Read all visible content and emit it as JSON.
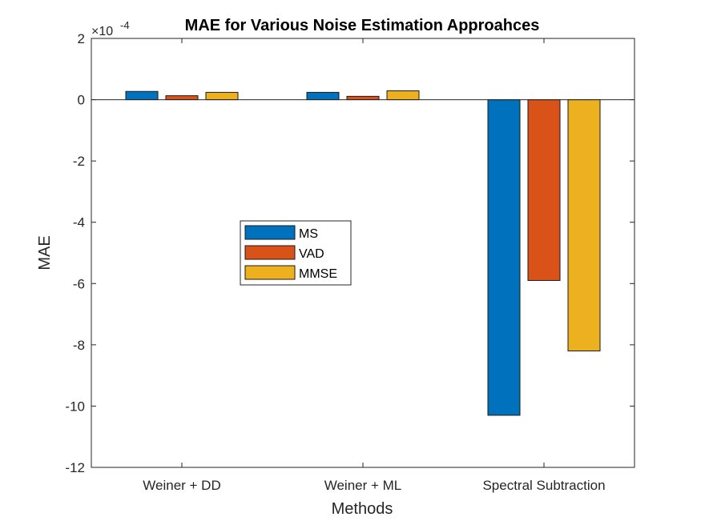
{
  "chart_data": {
    "type": "bar",
    "title": "MAE for Various Noise Estimation Approahces",
    "xlabel": "Methods",
    "ylabel": "MAE",
    "scale_label": "×10",
    "scale_exponent": "-4",
    "categories": [
      "Weiner + DD",
      "Weiner + ML",
      "Spectral Subtraction"
    ],
    "series": [
      {
        "name": "MS",
        "color": "#0072BD",
        "values": [
          0.27,
          0.24,
          -10.3
        ]
      },
      {
        "name": "VAD",
        "color": "#D95319",
        "values": [
          0.13,
          0.11,
          -5.9
        ]
      },
      {
        "name": "MMSE",
        "color": "#EDB120",
        "values": [
          0.24,
          0.29,
          -8.2
        ]
      }
    ],
    "ylim": [
      -12,
      2
    ],
    "yticks": [
      -12,
      -10,
      -8,
      -6,
      -4,
      -2,
      0,
      2
    ],
    "grid": false,
    "legend_position": "center-left"
  }
}
